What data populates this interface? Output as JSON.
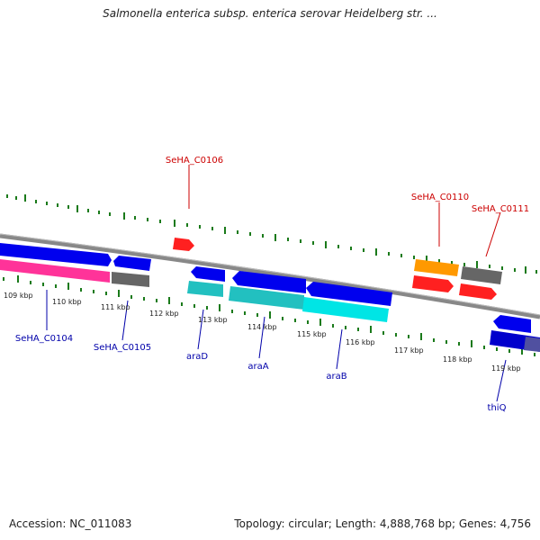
{
  "title": "Salmonella enterica subsp. enterica serovar Heidelberg str. ...",
  "footer": {
    "accession": "Accession: NC_011083",
    "summary": "Topology: circular; Length: 4,888,768 bp; Genes: 4,756"
  },
  "colors": {
    "cds_forward": "#0000ee",
    "cds_reverse_dark": "#0000cc",
    "rna": "#ff2020",
    "backbone": "#888888",
    "gc_positive": "#ff3399",
    "skew_cyan": "#00e5e5",
    "skew_teal": "#22c0c0",
    "skew_gray": "#666666",
    "orange": "#ff9900",
    "tick_green": "#1a7a1a",
    "label_blue": "#0000aa",
    "label_red": "#cc0000"
  },
  "scale_ticks": [
    "109 kbp",
    "110 kbp",
    "111 kbp",
    "112 kbp",
    "113 kbp",
    "114 kbp",
    "115 kbp",
    "116 kbp",
    "117 kbp",
    "118 kbp",
    "119 kbp"
  ],
  "gene_labels_top": [
    "SeHA_C0106",
    "SeHA_C0110",
    "SeHA_C0111"
  ],
  "gene_labels_bottom": [
    "SeHA_C0104",
    "SeHA_C0105",
    "araD",
    "araA",
    "araB",
    "thiQ"
  ]
}
